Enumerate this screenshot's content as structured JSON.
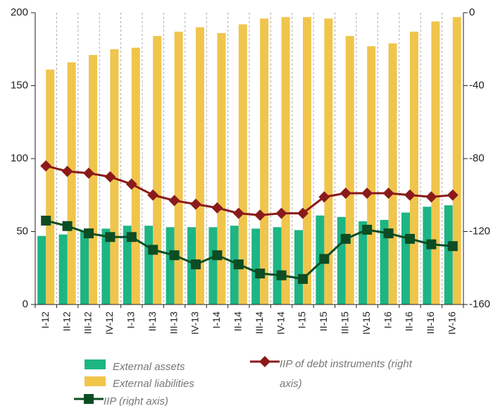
{
  "chart_data": {
    "type": "bar_line",
    "categories": [
      "I-12",
      "II-12",
      "III-12",
      "IV-12",
      "I-13",
      "II-13",
      "III-13",
      "IV-13",
      "I-14",
      "II-14",
      "III-14",
      "IV-14",
      "I-15",
      "II-15",
      "III-15",
      "IV-15",
      "I-16",
      "II-16",
      "III-16",
      "IV-16"
    ],
    "series": [
      {
        "name": "External assets",
        "color": "#1db584",
        "type": "bar",
        "values": [
          47,
          48,
          50,
          52,
          54,
          54,
          53,
          53,
          53,
          54,
          52,
          53,
          51,
          61,
          60,
          57,
          58,
          63,
          67,
          68
        ]
      },
      {
        "name": "External liabilities",
        "color": "#f0c54c",
        "type": "bar",
        "values": [
          161,
          166,
          171,
          175,
          176,
          184,
          187,
          190,
          186,
          192,
          196,
          197,
          197,
          196,
          184,
          177,
          179,
          187,
          194,
          197
        ]
      },
      {
        "name": "IIP of debt instruments (right axis)",
        "color": "#8b1a1a",
        "type": "line",
        "marker": "diamond",
        "axis": "y2",
        "values": [
          -84,
          -87,
          -88,
          -90,
          -94,
          -100,
          -103,
          -105,
          -107,
          -110,
          -111,
          -110,
          -110,
          -101,
          -99,
          -99,
          -99,
          -100,
          -101,
          -100
        ]
      },
      {
        "name": "IIP (right axis)",
        "color": "#0d4d24",
        "type": "line",
        "marker": "square",
        "axis": "y2",
        "values": [
          -114,
          -117,
          -121,
          -123,
          -123,
          -130,
          -133,
          -138,
          -133,
          -138,
          -143,
          -144,
          -146,
          -135,
          -124,
          -119,
          -121,
          -124,
          -127,
          -128
        ]
      }
    ],
    "ylim": [
      0,
      200
    ],
    "yticks": [
      0,
      50,
      100,
      150,
      200
    ],
    "y2lim": [
      -160,
      0
    ],
    "y2ticks": [
      -160,
      -120,
      -80,
      -40,
      0
    ],
    "grid": true,
    "legend": "bottom"
  }
}
